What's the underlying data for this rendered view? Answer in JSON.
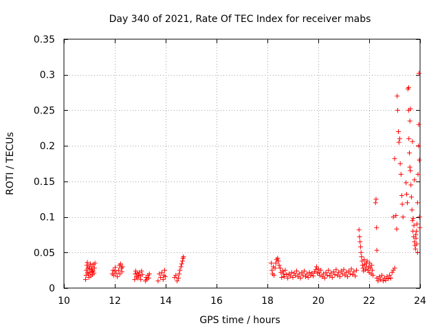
{
  "chart_data": {
    "type": "scatter",
    "title": "Day 340 of 2021, Rate Of TEC Index for receiver mabs",
    "xlabel": "GPS time / hours",
    "ylabel": "ROTI / TECUs",
    "xlim": [
      10,
      24
    ],
    "ylim": [
      0,
      0.35
    ],
    "xticks": [
      10,
      12,
      14,
      16,
      18,
      20,
      22,
      24
    ],
    "yticks": [
      0,
      0.05,
      0.1,
      0.15,
      0.2,
      0.25,
      0.3,
      0.35
    ],
    "xtick_labels": [
      "10",
      "12",
      "14",
      "16",
      "18",
      "20",
      "22",
      "24"
    ],
    "ytick_labels": [
      "0",
      "0.05",
      "0.1",
      "0.15",
      "0.2",
      "0.25",
      "0.3",
      "0.35"
    ],
    "grid": true,
    "marker": "+",
    "series": [
      {
        "name": "ROTI",
        "color": "#ff0000",
        "points": [
          [
            10.85,
            0.012
          ],
          [
            10.87,
            0.018
          ],
          [
            10.88,
            0.025
          ],
          [
            10.9,
            0.032
          ],
          [
            10.92,
            0.036
          ],
          [
            10.94,
            0.028
          ],
          [
            10.96,
            0.02
          ],
          [
            10.98,
            0.015
          ],
          [
            11.0,
            0.03
          ],
          [
            11.02,
            0.022
          ],
          [
            11.04,
            0.034
          ],
          [
            11.06,
            0.017
          ],
          [
            11.08,
            0.026
          ],
          [
            11.1,
            0.03
          ],
          [
            11.12,
            0.019
          ],
          [
            11.14,
            0.024
          ],
          [
            11.16,
            0.033
          ],
          [
            11.18,
            0.021
          ],
          [
            11.2,
            0.028
          ],
          [
            11.22,
            0.035
          ],
          [
            10.93,
            0.022
          ],
          [
            11.01,
            0.027
          ],
          [
            11.11,
            0.023
          ],
          [
            11.9,
            0.02
          ],
          [
            11.93,
            0.025
          ],
          [
            11.96,
            0.018
          ],
          [
            12.0,
            0.024
          ],
          [
            12.02,
            0.029
          ],
          [
            12.05,
            0.021
          ],
          [
            12.1,
            0.016
          ],
          [
            12.15,
            0.025
          ],
          [
            12.18,
            0.032
          ],
          [
            12.2,
            0.02
          ],
          [
            12.23,
            0.034
          ],
          [
            12.26,
            0.028
          ],
          [
            12.28,
            0.023
          ],
          [
            12.3,
            0.03
          ],
          [
            12.78,
            0.012
          ],
          [
            12.8,
            0.02
          ],
          [
            12.82,
            0.024
          ],
          [
            12.85,
            0.016
          ],
          [
            12.88,
            0.021
          ],
          [
            12.9,
            0.014
          ],
          [
            12.93,
            0.018
          ],
          [
            12.96,
            0.022
          ],
          [
            13.0,
            0.017
          ],
          [
            13.02,
            0.012
          ],
          [
            13.05,
            0.024
          ],
          [
            13.08,
            0.019
          ],
          [
            13.2,
            0.01
          ],
          [
            13.23,
            0.015
          ],
          [
            13.26,
            0.012
          ],
          [
            13.3,
            0.018
          ],
          [
            13.33,
            0.014
          ],
          [
            13.36,
            0.02
          ],
          [
            13.7,
            0.01
          ],
          [
            13.75,
            0.02
          ],
          [
            13.8,
            0.015
          ],
          [
            13.85,
            0.022
          ],
          [
            13.9,
            0.012
          ],
          [
            13.93,
            0.018
          ],
          [
            13.96,
            0.025
          ],
          [
            13.98,
            0.016
          ],
          [
            14.35,
            0.015
          ],
          [
            14.4,
            0.018
          ],
          [
            14.45,
            0.01
          ],
          [
            14.5,
            0.014
          ],
          [
            14.53,
            0.02
          ],
          [
            14.56,
            0.025
          ],
          [
            14.6,
            0.03
          ],
          [
            14.63,
            0.034
          ],
          [
            14.66,
            0.038
          ],
          [
            14.68,
            0.042
          ],
          [
            14.7,
            0.044
          ],
          [
            18.15,
            0.035
          ],
          [
            18.18,
            0.025
          ],
          [
            18.2,
            0.02
          ],
          [
            18.23,
            0.03
          ],
          [
            18.26,
            0.018
          ],
          [
            18.3,
            0.028
          ],
          [
            18.33,
            0.035
          ],
          [
            18.36,
            0.04
          ],
          [
            18.4,
            0.042
          ],
          [
            18.43,
            0.038
          ],
          [
            18.46,
            0.032
          ],
          [
            18.5,
            0.028
          ],
          [
            18.53,
            0.022
          ],
          [
            18.56,
            0.015
          ],
          [
            18.6,
            0.024
          ],
          [
            18.63,
            0.02
          ],
          [
            18.66,
            0.016
          ],
          [
            18.7,
            0.025
          ],
          [
            18.75,
            0.019
          ],
          [
            18.8,
            0.014
          ],
          [
            18.85,
            0.02
          ],
          [
            18.9,
            0.017
          ],
          [
            18.95,
            0.022
          ],
          [
            19.0,
            0.015
          ],
          [
            19.05,
            0.021
          ],
          [
            19.1,
            0.018
          ],
          [
            19.15,
            0.024
          ],
          [
            19.2,
            0.016
          ],
          [
            19.25,
            0.02
          ],
          [
            19.3,
            0.014
          ],
          [
            19.35,
            0.022
          ],
          [
            19.4,
            0.018
          ],
          [
            19.45,
            0.024
          ],
          [
            19.5,
            0.016
          ],
          [
            19.55,
            0.02
          ],
          [
            19.6,
            0.015
          ],
          [
            19.65,
            0.022
          ],
          [
            19.7,
            0.018
          ],
          [
            19.75,
            0.021
          ],
          [
            19.8,
            0.017
          ],
          [
            19.85,
            0.023
          ],
          [
            19.9,
            0.026
          ],
          [
            19.93,
            0.03
          ],
          [
            19.96,
            0.021
          ],
          [
            20.0,
            0.027
          ],
          [
            20.03,
            0.022
          ],
          [
            20.06,
            0.018
          ],
          [
            20.1,
            0.025
          ],
          [
            20.15,
            0.016
          ],
          [
            20.2,
            0.02
          ],
          [
            20.25,
            0.014
          ],
          [
            20.3,
            0.022
          ],
          [
            20.35,
            0.018
          ],
          [
            20.4,
            0.025
          ],
          [
            20.45,
            0.017
          ],
          [
            20.5,
            0.021
          ],
          [
            20.55,
            0.015
          ],
          [
            20.6,
            0.023
          ],
          [
            20.65,
            0.019
          ],
          [
            20.7,
            0.026
          ],
          [
            20.75,
            0.018
          ],
          [
            20.8,
            0.022
          ],
          [
            20.85,
            0.016
          ],
          [
            20.9,
            0.024
          ],
          [
            20.95,
            0.02
          ],
          [
            21.0,
            0.026
          ],
          [
            21.05,
            0.018
          ],
          [
            21.1,
            0.022
          ],
          [
            21.15,
            0.016
          ],
          [
            21.2,
            0.024
          ],
          [
            21.25,
            0.02
          ],
          [
            21.3,
            0.027
          ],
          [
            21.35,
            0.019
          ],
          [
            21.4,
            0.023
          ],
          [
            21.45,
            0.017
          ],
          [
            21.5,
            0.025
          ],
          [
            21.6,
            0.082
          ],
          [
            21.62,
            0.072
          ],
          [
            21.64,
            0.065
          ],
          [
            21.66,
            0.058
          ],
          [
            21.68,
            0.05
          ],
          [
            21.7,
            0.044
          ],
          [
            21.72,
            0.038
          ],
          [
            21.74,
            0.032
          ],
          [
            21.76,
            0.028
          ],
          [
            21.78,
            0.024
          ],
          [
            21.8,
            0.04
          ],
          [
            21.82,
            0.033
          ],
          [
            21.85,
            0.026
          ],
          [
            21.88,
            0.035
          ],
          [
            21.9,
            0.03
          ],
          [
            21.92,
            0.038
          ],
          [
            21.95,
            0.025
          ],
          [
            21.98,
            0.03
          ],
          [
            22.0,
            0.022
          ],
          [
            22.02,
            0.035
          ],
          [
            22.05,
            0.028
          ],
          [
            22.08,
            0.02
          ],
          [
            22.1,
            0.032
          ],
          [
            22.12,
            0.025
          ],
          [
            22.15,
            0.018
          ],
          [
            22.25,
            0.12
          ],
          [
            22.27,
            0.125
          ],
          [
            22.29,
            0.085
          ],
          [
            22.3,
            0.053
          ],
          [
            22.3,
            0.014
          ],
          [
            22.35,
            0.01
          ],
          [
            22.4,
            0.016
          ],
          [
            22.45,
            0.012
          ],
          [
            22.5,
            0.018
          ],
          [
            22.55,
            0.01
          ],
          [
            22.6,
            0.014
          ],
          [
            22.65,
            0.011
          ],
          [
            22.7,
            0.016
          ],
          [
            22.75,
            0.013
          ],
          [
            22.8,
            0.018
          ],
          [
            22.85,
            0.014
          ],
          [
            22.9,
            0.022
          ],
          [
            22.95,
            0.025
          ],
          [
            23.0,
            0.028
          ],
          [
            22.95,
            0.1
          ],
          [
            23.0,
            0.182
          ],
          [
            23.05,
            0.102
          ],
          [
            23.08,
            0.083
          ],
          [
            23.1,
            0.27
          ],
          [
            23.12,
            0.25
          ],
          [
            23.15,
            0.22
          ],
          [
            23.17,
            0.205
          ],
          [
            23.2,
            0.21
          ],
          [
            23.22,
            0.175
          ],
          [
            23.25,
            0.16
          ],
          [
            23.28,
            0.13
          ],
          [
            23.3,
            0.118
          ],
          [
            23.33,
            0.1
          ],
          [
            23.45,
            0.148
          ],
          [
            23.47,
            0.132
          ],
          [
            23.5,
            0.12
          ],
          [
            23.52,
            0.28
          ],
          [
            23.55,
            0.25
          ],
          [
            23.56,
            0.21
          ],
          [
            23.58,
            0.19
          ],
          [
            23.6,
            0.17
          ],
          [
            23.62,
            0.165
          ],
          [
            23.64,
            0.145
          ],
          [
            23.66,
            0.128
          ],
          [
            23.68,
            0.11
          ],
          [
            23.7,
            0.095
          ],
          [
            23.72,
            0.08
          ],
          [
            23.75,
            0.072
          ],
          [
            23.78,
            0.065
          ],
          [
            23.8,
            0.06
          ],
          [
            23.82,
            0.055
          ],
          [
            23.84,
            0.07
          ],
          [
            23.86,
            0.08
          ],
          [
            23.88,
            0.09
          ],
          [
            23.9,
            0.12
          ],
          [
            23.92,
            0.16
          ],
          [
            23.94,
            0.2
          ],
          [
            23.95,
            0.23
          ],
          [
            23.96,
            0.302
          ],
          [
            23.97,
            0.18
          ],
          [
            23.98,
            0.1
          ],
          [
            23.99,
            0.085
          ],
          [
            23.55,
            0.282
          ],
          [
            23.6,
            0.235
          ],
          [
            23.62,
            0.252
          ],
          [
            23.7,
            0.206
          ],
          [
            23.73,
            0.098
          ],
          [
            23.76,
            0.088
          ],
          [
            23.78,
            0.152
          ],
          [
            23.83,
            0.075
          ],
          [
            23.87,
            0.062
          ],
          [
            23.9,
            0.05
          ]
        ]
      }
    ]
  }
}
